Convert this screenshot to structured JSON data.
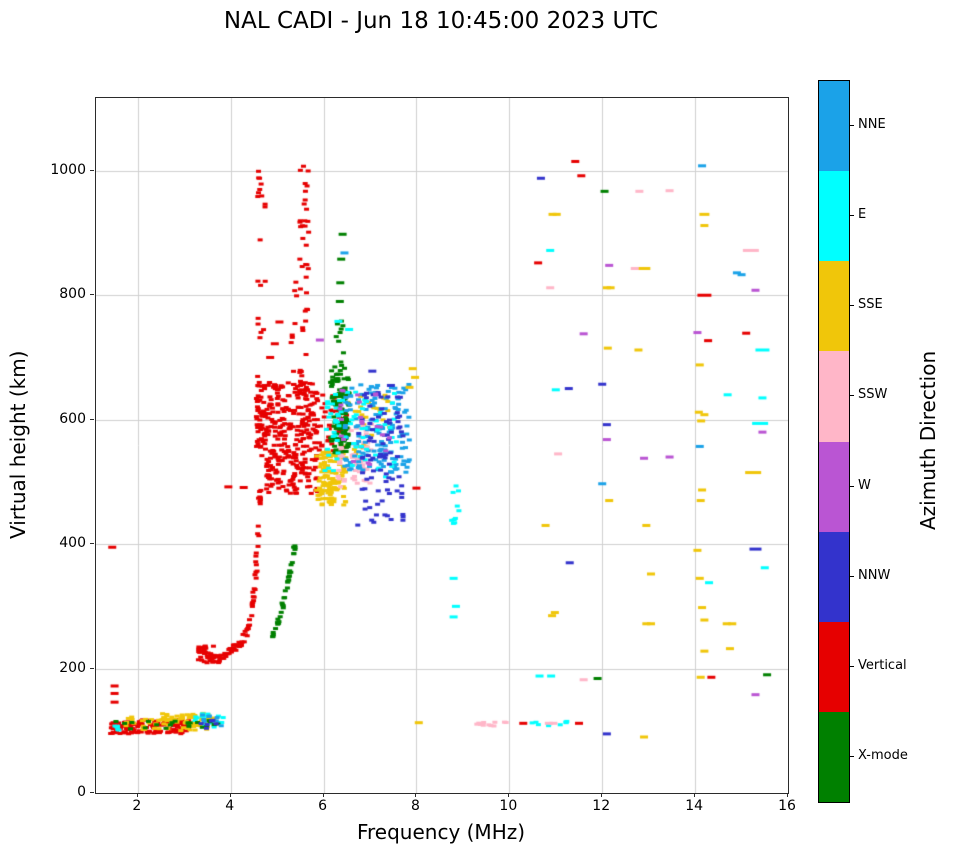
{
  "chart_data": {
    "type": "scatter",
    "title": "NAL CADI - Jun 18 10:45:00 2023 UTC",
    "xlabel": "Frequency (MHz)",
    "ylabel": "Virtual height (km)",
    "xlim": [
      1.1,
      16
    ],
    "ylim": [
      0,
      1117
    ],
    "xticks": [
      2,
      4,
      6,
      8,
      10,
      12,
      14,
      16
    ],
    "yticks": [
      0,
      200,
      400,
      600,
      800,
      1000
    ],
    "grid": true,
    "legend": {
      "label": "Azimuth Direction",
      "position": "right-colorbar",
      "entries": [
        {
          "name": "NNE",
          "color": "#1ba2e8"
        },
        {
          "name": "E",
          "color": "#00ffff"
        },
        {
          "name": "SSE",
          "color": "#f0c60a"
        },
        {
          "name": "SSW",
          "color": "#ffb6c8"
        },
        {
          "name": "W",
          "color": "#ba55d3"
        },
        {
          "name": "NNW",
          "color": "#3333cc"
        },
        {
          "name": "Vertical",
          "color": "#e60000"
        },
        {
          "name": "X-mode",
          "color": "#008000"
        }
      ]
    },
    "traces": [
      {
        "series": "Vertical",
        "path": [
          [
            3.45,
            228
          ],
          [
            3.6,
            216
          ],
          [
            3.75,
            215
          ],
          [
            3.9,
            222
          ],
          [
            4.05,
            230
          ],
          [
            4.2,
            240
          ],
          [
            4.32,
            255
          ],
          [
            4.42,
            278
          ],
          [
            4.5,
            315
          ],
          [
            4.56,
            370
          ],
          [
            4.61,
            440
          ],
          [
            4.65,
            530
          ],
          [
            4.68,
            620
          ]
        ],
        "jf": 0.05,
        "jh": 12,
        "per": 8
      },
      {
        "series": "X-mode",
        "path": [
          [
            4.9,
            252
          ],
          [
            5.0,
            270
          ],
          [
            5.1,
            293
          ],
          [
            5.18,
            318
          ],
          [
            5.26,
            345
          ],
          [
            5.33,
            375
          ],
          [
            5.38,
            400
          ]
        ],
        "jf": 0.04,
        "jh": 9,
        "per": 6
      }
    ],
    "clusters": [
      {
        "series": "Vertical",
        "f": [
          1.4,
          3.1
        ],
        "h": [
          95,
          118
        ],
        "n": 130
      },
      {
        "series": "Vertical",
        "f": [
          3.3,
          3.65
        ],
        "h": [
          208,
          237
        ],
        "n": 30
      },
      {
        "series": "SSE",
        "f": [
          2.5,
          3.65
        ],
        "h": [
          100,
          128
        ],
        "n": 70
      },
      {
        "series": "SSE",
        "f": [
          1.7,
          2.5
        ],
        "h": [
          100,
          124
        ],
        "n": 18
      },
      {
        "series": "E",
        "f": [
          3.2,
          3.85
        ],
        "h": [
          106,
          128
        ],
        "n": 16
      },
      {
        "series": "E",
        "f": [
          1.45,
          1.62
        ],
        "h": [
          100,
          114
        ],
        "n": 6
      },
      {
        "series": "X-mode",
        "f": [
          1.5,
          3.75
        ],
        "h": [
          103,
          117
        ],
        "n": 22
      },
      {
        "series": "NNE",
        "f": [
          3.35,
          3.8
        ],
        "h": [
          108,
          126
        ],
        "n": 8
      },
      {
        "series": "NNW",
        "f": [
          3.35,
          3.7
        ],
        "h": [
          104,
          120
        ],
        "n": 6
      },
      {
        "series": "Vertical",
        "f": [
          4.75,
          5.9
        ],
        "h": [
          480,
          660
        ],
        "n": 300
      },
      {
        "series": "Vertical",
        "f": [
          4.55,
          4.75
        ],
        "h": [
          550,
          655
        ],
        "n": 45
      },
      {
        "series": "Vertical",
        "f": [
          5.9,
          6.5
        ],
        "h": [
          545,
          640
        ],
        "n": 45
      },
      {
        "series": "Vertical",
        "f": [
          4.58,
          4.75
        ],
        "h": [
          650,
          1005
        ],
        "n": 22
      },
      {
        "series": "Vertical",
        "f": [
          5.48,
          5.68
        ],
        "h": [
          650,
          1010
        ],
        "n": 40
      },
      {
        "series": "Vertical",
        "f": [
          5.28,
          5.42
        ],
        "h": [
          660,
          830
        ],
        "n": 8
      },
      {
        "series": "SSE",
        "f": [
          5.85,
          6.5
        ],
        "h": [
          462,
          550
        ],
        "n": 120
      },
      {
        "series": "SSE",
        "f": [
          6.5,
          7.45
        ],
        "h": [
          540,
          645
        ],
        "n": 30
      },
      {
        "series": "SSW",
        "f": [
          6.3,
          7.05
        ],
        "h": [
          492,
          595
        ],
        "n": 65
      },
      {
        "series": "X-mode",
        "f": [
          6.15,
          6.55
        ],
        "h": [
          545,
          685
        ],
        "n": 120
      },
      {
        "series": "X-mode",
        "f": [
          6.25,
          6.45
        ],
        "h": [
          685,
          770
        ],
        "n": 10
      },
      {
        "series": "NNE",
        "f": [
          6.45,
          7.85
        ],
        "h": [
          515,
          658
        ],
        "n": 150
      },
      {
        "series": "E",
        "f": [
          6.0,
          7.6
        ],
        "h": [
          500,
          652
        ],
        "n": 70
      },
      {
        "series": "NNW",
        "f": [
          6.7,
          7.72
        ],
        "h": [
          428,
          645
        ],
        "n": 85
      },
      {
        "series": "W",
        "f": [
          6.35,
          7.5
        ],
        "h": [
          518,
          648
        ],
        "n": 22
      },
      {
        "series": "E",
        "f": [
          8.72,
          8.92
        ],
        "h": [
          425,
          520
        ],
        "n": 10
      },
      {
        "series": "SSW",
        "f": [
          9.3,
          10.2
        ],
        "h": [
          107,
          116
        ],
        "n": 12
      },
      {
        "series": "E",
        "f": [
          10.45,
          11.25
        ],
        "h": [
          107,
          116
        ],
        "n": 9
      }
    ],
    "points": [
      [
        "Vertical",
        1.45,
        395
      ],
      [
        "Vertical",
        1.5,
        146
      ],
      [
        "Vertical",
        1.5,
        160
      ],
      [
        "Vertical",
        1.5,
        172
      ],
      [
        "Vertical",
        3.95,
        492
      ],
      [
        "Vertical",
        4.28,
        491
      ],
      [
        "Vertical",
        8.0,
        490
      ],
      [
        "Vertical",
        4.85,
        700
      ],
      [
        "Vertical",
        4.95,
        722
      ],
      [
        "Vertical",
        5.05,
        757
      ],
      [
        "Vertical",
        10.3,
        112
      ],
      [
        "Vertical",
        11.5,
        112
      ],
      [
        "Vertical",
        11.42,
        1015
      ],
      [
        "Vertical",
        11.55,
        992
      ],
      [
        "Vertical",
        10.62,
        852
      ],
      [
        "Vertical",
        14.2,
        800,
        14
      ],
      [
        "Vertical",
        14.28,
        727
      ],
      [
        "Vertical",
        15.1,
        739
      ],
      [
        "Vertical",
        14.35,
        186
      ],
      [
        "X-mode",
        6.35,
        790
      ],
      [
        "X-mode",
        6.36,
        820
      ],
      [
        "X-mode",
        6.38,
        858
      ],
      [
        "X-mode",
        6.41,
        898
      ],
      [
        "X-mode",
        11.9,
        184
      ],
      [
        "X-mode",
        12.05,
        967
      ],
      [
        "X-mode",
        15.55,
        190
      ],
      [
        "SSE",
        8.05,
        113
      ],
      [
        "SSE",
        7.85,
        652
      ],
      [
        "SSE",
        7.92,
        682
      ],
      [
        "SSE",
        7.97,
        668
      ],
      [
        "SSE",
        10.78,
        430
      ],
      [
        "SSE",
        10.92,
        285
      ],
      [
        "SSE",
        10.98,
        290
      ],
      [
        "SSE",
        10.93,
        930
      ],
      [
        "SSE",
        11.02,
        930
      ],
      [
        "SSE",
        12.1,
        812
      ],
      [
        "SSE",
        12.18,
        812
      ],
      [
        "SSE",
        12.12,
        715
      ],
      [
        "SSE",
        12.78,
        712
      ],
      [
        "SSE",
        12.15,
        470
      ],
      [
        "SSE",
        12.85,
        843
      ],
      [
        "SSE",
        12.95,
        843
      ],
      [
        "SSE",
        12.95,
        430
      ],
      [
        "SSE",
        13.05,
        352
      ],
      [
        "SSE",
        12.95,
        272
      ],
      [
        "SSE",
        13.05,
        272
      ],
      [
        "SSE",
        12.9,
        90
      ],
      [
        "SSE",
        14.2,
        930,
        10
      ],
      [
        "SSE",
        14.2,
        912
      ],
      [
        "SSE",
        14.1,
        688
      ],
      [
        "SSE",
        14.08,
        612
      ],
      [
        "SSE",
        14.2,
        608
      ],
      [
        "SSE",
        14.13,
        598
      ],
      [
        "SSE",
        14.15,
        487
      ],
      [
        "SSE",
        14.12,
        470
      ],
      [
        "SSE",
        14.05,
        390
      ],
      [
        "SSE",
        14.1,
        345
      ],
      [
        "SSE",
        14.15,
        298
      ],
      [
        "SSE",
        14.2,
        278
      ],
      [
        "SSE",
        14.2,
        228
      ],
      [
        "SSE",
        14.68,
        272
      ],
      [
        "SSE",
        14.8,
        272
      ],
      [
        "SSE",
        14.75,
        232
      ],
      [
        "SSE",
        14.12,
        186
      ],
      [
        "SSE",
        15.25,
        515,
        16
      ],
      [
        "E",
        6.32,
        758
      ],
      [
        "E",
        6.55,
        745
      ],
      [
        "E",
        8.8,
        283
      ],
      [
        "E",
        8.85,
        300
      ],
      [
        "E",
        8.8,
        345
      ],
      [
        "E",
        10.65,
        188
      ],
      [
        "E",
        10.9,
        188
      ],
      [
        "E",
        10.88,
        872
      ],
      [
        "E",
        11.0,
        648
      ],
      [
        "E",
        14.3,
        338
      ],
      [
        "E",
        14.7,
        640
      ],
      [
        "E",
        15.45,
        712,
        14
      ],
      [
        "E",
        15.45,
        635
      ],
      [
        "E",
        15.4,
        594,
        16
      ],
      [
        "E",
        15.5,
        362
      ],
      [
        "SSW",
        10.85,
        112
      ],
      [
        "SSW",
        10.95,
        112
      ],
      [
        "SSW",
        10.88,
        812
      ],
      [
        "SSW",
        11.05,
        545
      ],
      [
        "SSW",
        11.6,
        182
      ],
      [
        "SSW",
        12.7,
        843
      ],
      [
        "SSW",
        12.8,
        967
      ],
      [
        "SSW",
        13.45,
        968
      ],
      [
        "SSW",
        15.2,
        872,
        16
      ],
      [
        "W",
        5.92,
        728
      ],
      [
        "W",
        11.6,
        738
      ],
      [
        "W",
        12.15,
        848
      ],
      [
        "W",
        12.1,
        568
      ],
      [
        "W",
        12.9,
        538
      ],
      [
        "W",
        13.45,
        540
      ],
      [
        "W",
        14.05,
        740
      ],
      [
        "W",
        15.3,
        808
      ],
      [
        "W",
        15.45,
        580
      ],
      [
        "W",
        15.3,
        158
      ],
      [
        "NNW",
        7.05,
        678
      ],
      [
        "NNW",
        7.45,
        655
      ],
      [
        "NNW",
        10.68,
        988
      ],
      [
        "NNW",
        11.28,
        650
      ],
      [
        "NNW",
        11.3,
        370
      ],
      [
        "NNW",
        12.0,
        657
      ],
      [
        "NNW",
        12.1,
        592
      ],
      [
        "NNW",
        12.1,
        95
      ],
      [
        "NNW",
        15.3,
        392,
        12
      ],
      [
        "NNE",
        6.45,
        868
      ],
      [
        "NNE",
        12.0,
        497
      ],
      [
        "NNE",
        14.15,
        1008
      ],
      [
        "NNE",
        14.1,
        557
      ],
      [
        "NNE",
        14.9,
        836
      ],
      [
        "NNE",
        15.0,
        833
      ]
    ]
  }
}
